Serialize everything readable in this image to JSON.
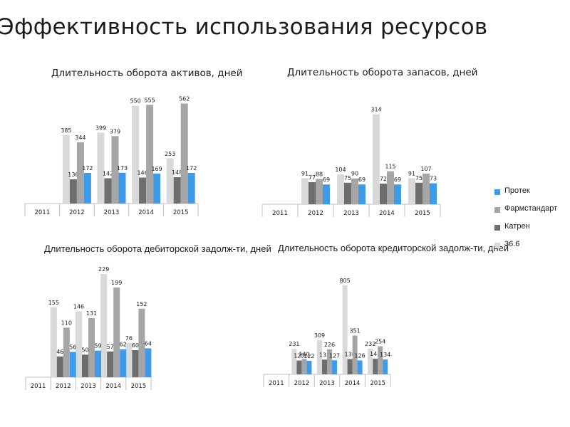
{
  "slide": {
    "title": "Эффективность использования ресурсов"
  },
  "legend": [
    {
      "name": "Протек",
      "color": "#3d9be9"
    },
    {
      "name": "Фармстандарт",
      "color": "#a6a6a6"
    },
    {
      "name": "Катрен",
      "color": "#6e6e6e"
    },
    {
      "name": "36.6",
      "color": "#d9d9d9"
    }
  ],
  "chart_data": [
    {
      "type": "bar",
      "title": "Длительность оборота активов, дней",
      "categories": [
        "2011",
        "2012",
        "2013",
        "2014",
        "2015"
      ],
      "series": [
        {
          "name": "36.6",
          "color": "#d9d9d9",
          "values": [
            null,
            385,
            399,
            550,
            253
          ]
        },
        {
          "name": "Катрен",
          "color": "#6e6e6e",
          "values": [
            null,
            136,
            142,
            146,
            148
          ]
        },
        {
          "name": "Фармстандарт",
          "color": "#a6a6a6",
          "values": [
            null,
            344,
            379,
            555,
            562
          ]
        },
        {
          "name": "Протек",
          "color": "#3d9be9",
          "values": [
            null,
            172,
            173,
            169,
            172
          ]
        }
      ],
      "xlabel": "",
      "ylabel": "",
      "ylim": [
        0,
        600
      ],
      "grid": false
    },
    {
      "type": "bar",
      "title": "Длительность оборота запасов, дней",
      "categories": [
        "2011",
        "2012",
        "2013",
        "2014",
        "2015"
      ],
      "series": [
        {
          "name": "36.6",
          "color": "#d9d9d9",
          "values": [
            null,
            91,
            104,
            314,
            91
          ]
        },
        {
          "name": "Катрен",
          "color": "#6e6e6e",
          "values": [
            null,
            77,
            75,
            72,
            75
          ]
        },
        {
          "name": "Фармстандарт",
          "color": "#a6a6a6",
          "values": [
            null,
            88,
            90,
            115,
            107
          ]
        },
        {
          "name": "Протек",
          "color": "#3d9be9",
          "values": [
            null,
            69,
            69,
            69,
            73
          ]
        }
      ],
      "xlabel": "",
      "ylabel": "",
      "ylim": [
        0,
        340
      ],
      "grid": false
    },
    {
      "type": "bar",
      "title": "Длительность оборота дебиторской задолж-ти, дней",
      "categories": [
        "2011",
        "2012",
        "2013",
        "2014",
        "2015"
      ],
      "series": [
        {
          "name": "36.6",
          "color": "#d9d9d9",
          "values": [
            null,
            155,
            146,
            229,
            76
          ]
        },
        {
          "name": "Катрен",
          "color": "#6e6e6e",
          "values": [
            null,
            46,
            50,
            57,
            60
          ]
        },
        {
          "name": "Фармстандарт",
          "color": "#a6a6a6",
          "values": [
            null,
            110,
            131,
            199,
            152
          ]
        },
        {
          "name": "Протек",
          "color": "#3d9be9",
          "values": [
            null,
            56,
            59,
            62,
            64
          ]
        }
      ],
      "xlabel": "",
      "ylabel": "",
      "ylim": [
        0,
        229
      ],
      "grid": false
    },
    {
      "type": "bar",
      "title": "Длительность оборота кредиторской задолж-ти, дней",
      "categories": [
        "2011",
        "2012",
        "2013",
        "2014",
        "2015"
      ],
      "series": [
        {
          "name": "36.6",
          "color": "#d9d9d9",
          "values": [
            null,
            231,
            309,
            805,
            232
          ]
        },
        {
          "name": "Катрен",
          "color": "#6e6e6e",
          "values": [
            null,
            125,
            133,
            138,
            141
          ]
        },
        {
          "name": "Фармстандарт",
          "color": "#a6a6a6",
          "values": [
            null,
            140,
            226,
            351,
            254
          ]
        },
        {
          "name": "Протек",
          "color": "#3d9be9",
          "values": [
            null,
            122,
            127,
            126,
            134
          ]
        }
      ],
      "xlabel": "",
      "ylabel": "",
      "ylim": [
        0,
        805
      ],
      "grid": false
    }
  ]
}
